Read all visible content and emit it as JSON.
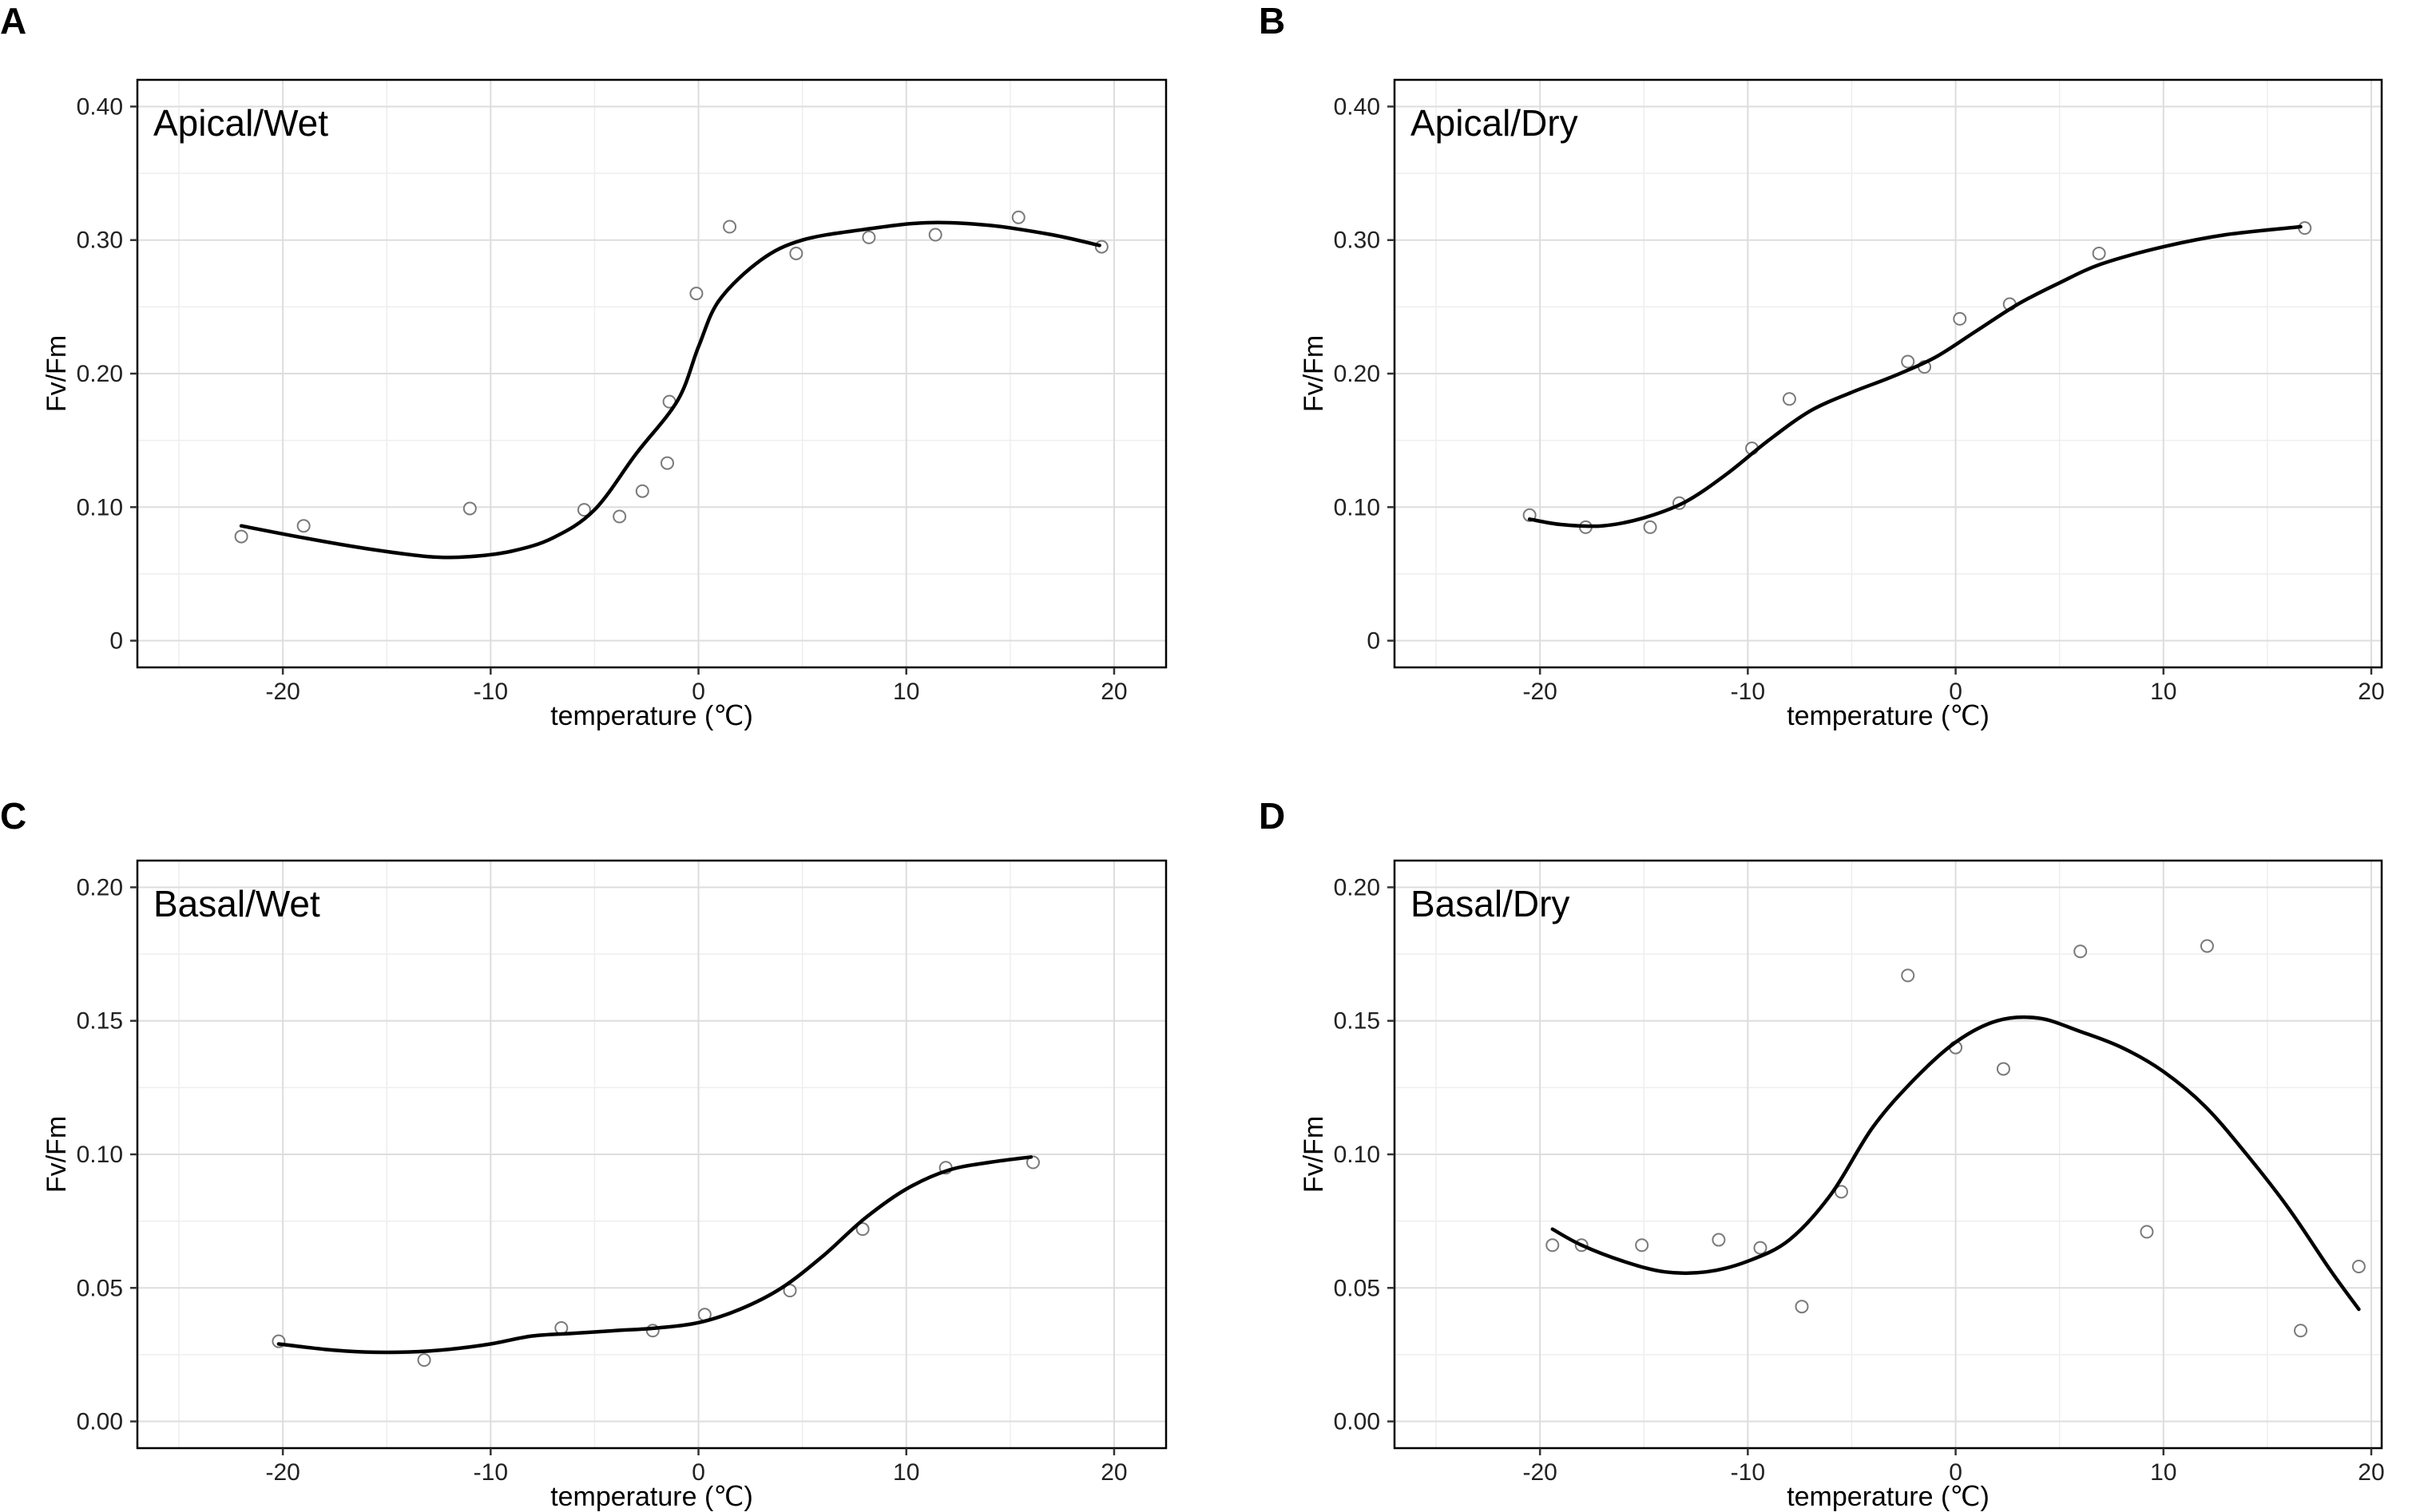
{
  "chart_data": [
    {
      "type": "scatter",
      "panel": "A",
      "title": "Apical/Wet",
      "xlabel": "temperature (℃)",
      "ylabel": "Fv/Fm",
      "xlim": [
        -27,
        22.5
      ],
      "ylim": [
        -0.02,
        0.42
      ],
      "xticks": [
        -20,
        -10,
        0,
        10,
        20
      ],
      "yticks": [
        0,
        0.1,
        0.2,
        0.3,
        0.4
      ],
      "ytick_labels": [
        "0",
        "0.10",
        "0.20",
        "0.30",
        "0.40"
      ],
      "xtick_labels": [
        "-20",
        "-10",
        "0",
        "10",
        "20"
      ],
      "grid": true,
      "points": [
        [
          -22,
          0.078
        ],
        [
          -19,
          0.086
        ],
        [
          -11,
          0.099
        ],
        [
          -5.5,
          0.098
        ],
        [
          -3.8,
          0.093
        ],
        [
          -2.7,
          0.112
        ],
        [
          -1.5,
          0.133
        ],
        [
          -1.4,
          0.179
        ],
        [
          -0.1,
          0.26
        ],
        [
          1.5,
          0.31
        ],
        [
          4.7,
          0.29
        ],
        [
          8.2,
          0.302
        ],
        [
          11.4,
          0.304
        ],
        [
          15.4,
          0.317
        ],
        [
          19.4,
          0.295
        ]
      ],
      "fit": [
        [
          -22,
          0.086
        ],
        [
          -19,
          0.077
        ],
        [
          -16,
          0.069
        ],
        [
          -13,
          0.063
        ],
        [
          -11,
          0.063
        ],
        [
          -9,
          0.067
        ],
        [
          -7,
          0.077
        ],
        [
          -5,
          0.098
        ],
        [
          -3,
          0.14
        ],
        [
          -1,
          0.18
        ],
        [
          0,
          0.22
        ],
        [
          1,
          0.255
        ],
        [
          3,
          0.285
        ],
        [
          5,
          0.3
        ],
        [
          8,
          0.308
        ],
        [
          11,
          0.313
        ],
        [
          14,
          0.311
        ],
        [
          17,
          0.304
        ],
        [
          19.3,
          0.296
        ]
      ]
    },
    {
      "type": "scatter",
      "panel": "B",
      "title": "Apical/Dry",
      "xlabel": "temperature (℃)",
      "ylabel": "Fv/Fm",
      "xlim": [
        -27,
        20.5
      ],
      "ylim": [
        -0.02,
        0.42
      ],
      "xticks": [
        -20,
        -10,
        0,
        10,
        20
      ],
      "yticks": [
        0,
        0.1,
        0.2,
        0.3,
        0.4
      ],
      "ytick_labels": [
        "0",
        "0.10",
        "0.20",
        "0.30",
        "0.40"
      ],
      "xtick_labels": [
        "-20",
        "-10",
        "0",
        "10",
        "20"
      ],
      "grid": true,
      "points": [
        [
          -20.5,
          0.094
        ],
        [
          -17.8,
          0.085
        ],
        [
          -14.7,
          0.085
        ],
        [
          -13.3,
          0.103
        ],
        [
          -9.8,
          0.144
        ],
        [
          -8,
          0.181
        ],
        [
          -2.3,
          0.209
        ],
        [
          -1.5,
          0.205
        ],
        [
          0.2,
          0.241
        ],
        [
          2.6,
          0.252
        ],
        [
          6.9,
          0.29
        ],
        [
          16.8,
          0.309
        ]
      ],
      "fit": [
        [
          -20.5,
          0.091
        ],
        [
          -19,
          0.087
        ],
        [
          -17,
          0.086
        ],
        [
          -15,
          0.092
        ],
        [
          -13,
          0.104
        ],
        [
          -11,
          0.125
        ],
        [
          -9,
          0.15
        ],
        [
          -7,
          0.172
        ],
        [
          -5,
          0.186
        ],
        [
          -3,
          0.198
        ],
        [
          -1,
          0.212
        ],
        [
          1,
          0.232
        ],
        [
          3,
          0.252
        ],
        [
          5,
          0.268
        ],
        [
          7,
          0.282
        ],
        [
          10,
          0.295
        ],
        [
          13,
          0.304
        ],
        [
          16.6,
          0.31
        ]
      ]
    },
    {
      "type": "scatter",
      "panel": "C",
      "title": "Basal/Wet",
      "xlabel": "temperature (℃)",
      "ylabel": "Fv/Fm",
      "xlim": [
        -27,
        22.5
      ],
      "ylim": [
        -0.01,
        0.21
      ],
      "xticks": [
        -20,
        -10,
        0,
        10,
        20
      ],
      "yticks": [
        0,
        0.05,
        0.1,
        0.15,
        0.2
      ],
      "ytick_labels": [
        "0.00",
        "0.05",
        "0.10",
        "0.15",
        "0.20"
      ],
      "xtick_labels": [
        "-20",
        "-10",
        "0",
        "10",
        "20"
      ],
      "grid": true,
      "points": [
        [
          -20.2,
          0.03
        ],
        [
          -13.2,
          0.023
        ],
        [
          -6.6,
          0.035
        ],
        [
          -2.2,
          0.034
        ],
        [
          0.3,
          0.04
        ],
        [
          4.4,
          0.049
        ],
        [
          7.9,
          0.072
        ],
        [
          11.9,
          0.095
        ],
        [
          16.1,
          0.097
        ]
      ],
      "fit": [
        [
          -20.2,
          0.029
        ],
        [
          -18,
          0.027
        ],
        [
          -16,
          0.026
        ],
        [
          -14,
          0.026
        ],
        [
          -12,
          0.027
        ],
        [
          -10,
          0.029
        ],
        [
          -8,
          0.032
        ],
        [
          -6,
          0.033
        ],
        [
          -4,
          0.034
        ],
        [
          -2,
          0.035
        ],
        [
          0,
          0.037
        ],
        [
          2,
          0.042
        ],
        [
          4,
          0.05
        ],
        [
          6,
          0.062
        ],
        [
          8,
          0.076
        ],
        [
          10,
          0.087
        ],
        [
          12,
          0.094
        ],
        [
          14,
          0.097
        ],
        [
          16,
          0.099
        ]
      ]
    },
    {
      "type": "scatter",
      "panel": "D",
      "title": "Basal/Dry",
      "xlabel": "temperature (℃)",
      "ylabel": "Fv/Fm",
      "xlim": [
        -27,
        20.5
      ],
      "ylim": [
        -0.01,
        0.21
      ],
      "xticks": [
        -20,
        -10,
        0,
        10,
        20
      ],
      "yticks": [
        0,
        0.05,
        0.1,
        0.15,
        0.2
      ],
      "ytick_labels": [
        "0.00",
        "0.05",
        "0.10",
        "0.15",
        "0.20"
      ],
      "xtick_labels": [
        "-20",
        "-10",
        "0",
        "10",
        "20"
      ],
      "grid": true,
      "points": [
        [
          -19.4,
          0.066
        ],
        [
          -18,
          0.066
        ],
        [
          -15.1,
          0.066
        ],
        [
          -11.4,
          0.068
        ],
        [
          -9.4,
          0.065
        ],
        [
          -7.4,
          0.043
        ],
        [
          -5.5,
          0.086
        ],
        [
          -2.3,
          0.167
        ],
        [
          0,
          0.14
        ],
        [
          2.3,
          0.132
        ],
        [
          6,
          0.176
        ],
        [
          9.2,
          0.071
        ],
        [
          12.1,
          0.178
        ],
        [
          16.6,
          0.034
        ],
        [
          19.4,
          0.058
        ]
      ],
      "fit": [
        [
          -19.4,
          0.072
        ],
        [
          -18,
          0.066
        ],
        [
          -16,
          0.06
        ],
        [
          -14,
          0.056
        ],
        [
          -12,
          0.056
        ],
        [
          -10,
          0.06
        ],
        [
          -8,
          0.068
        ],
        [
          -6,
          0.085
        ],
        [
          -4,
          0.11
        ],
        [
          -2,
          0.128
        ],
        [
          0,
          0.142
        ],
        [
          2,
          0.15
        ],
        [
          4,
          0.151
        ],
        [
          6,
          0.146
        ],
        [
          8,
          0.14
        ],
        [
          10,
          0.131
        ],
        [
          12,
          0.118
        ],
        [
          14,
          0.1
        ],
        [
          16,
          0.08
        ],
        [
          18,
          0.057
        ],
        [
          19.4,
          0.042
        ]
      ]
    }
  ]
}
